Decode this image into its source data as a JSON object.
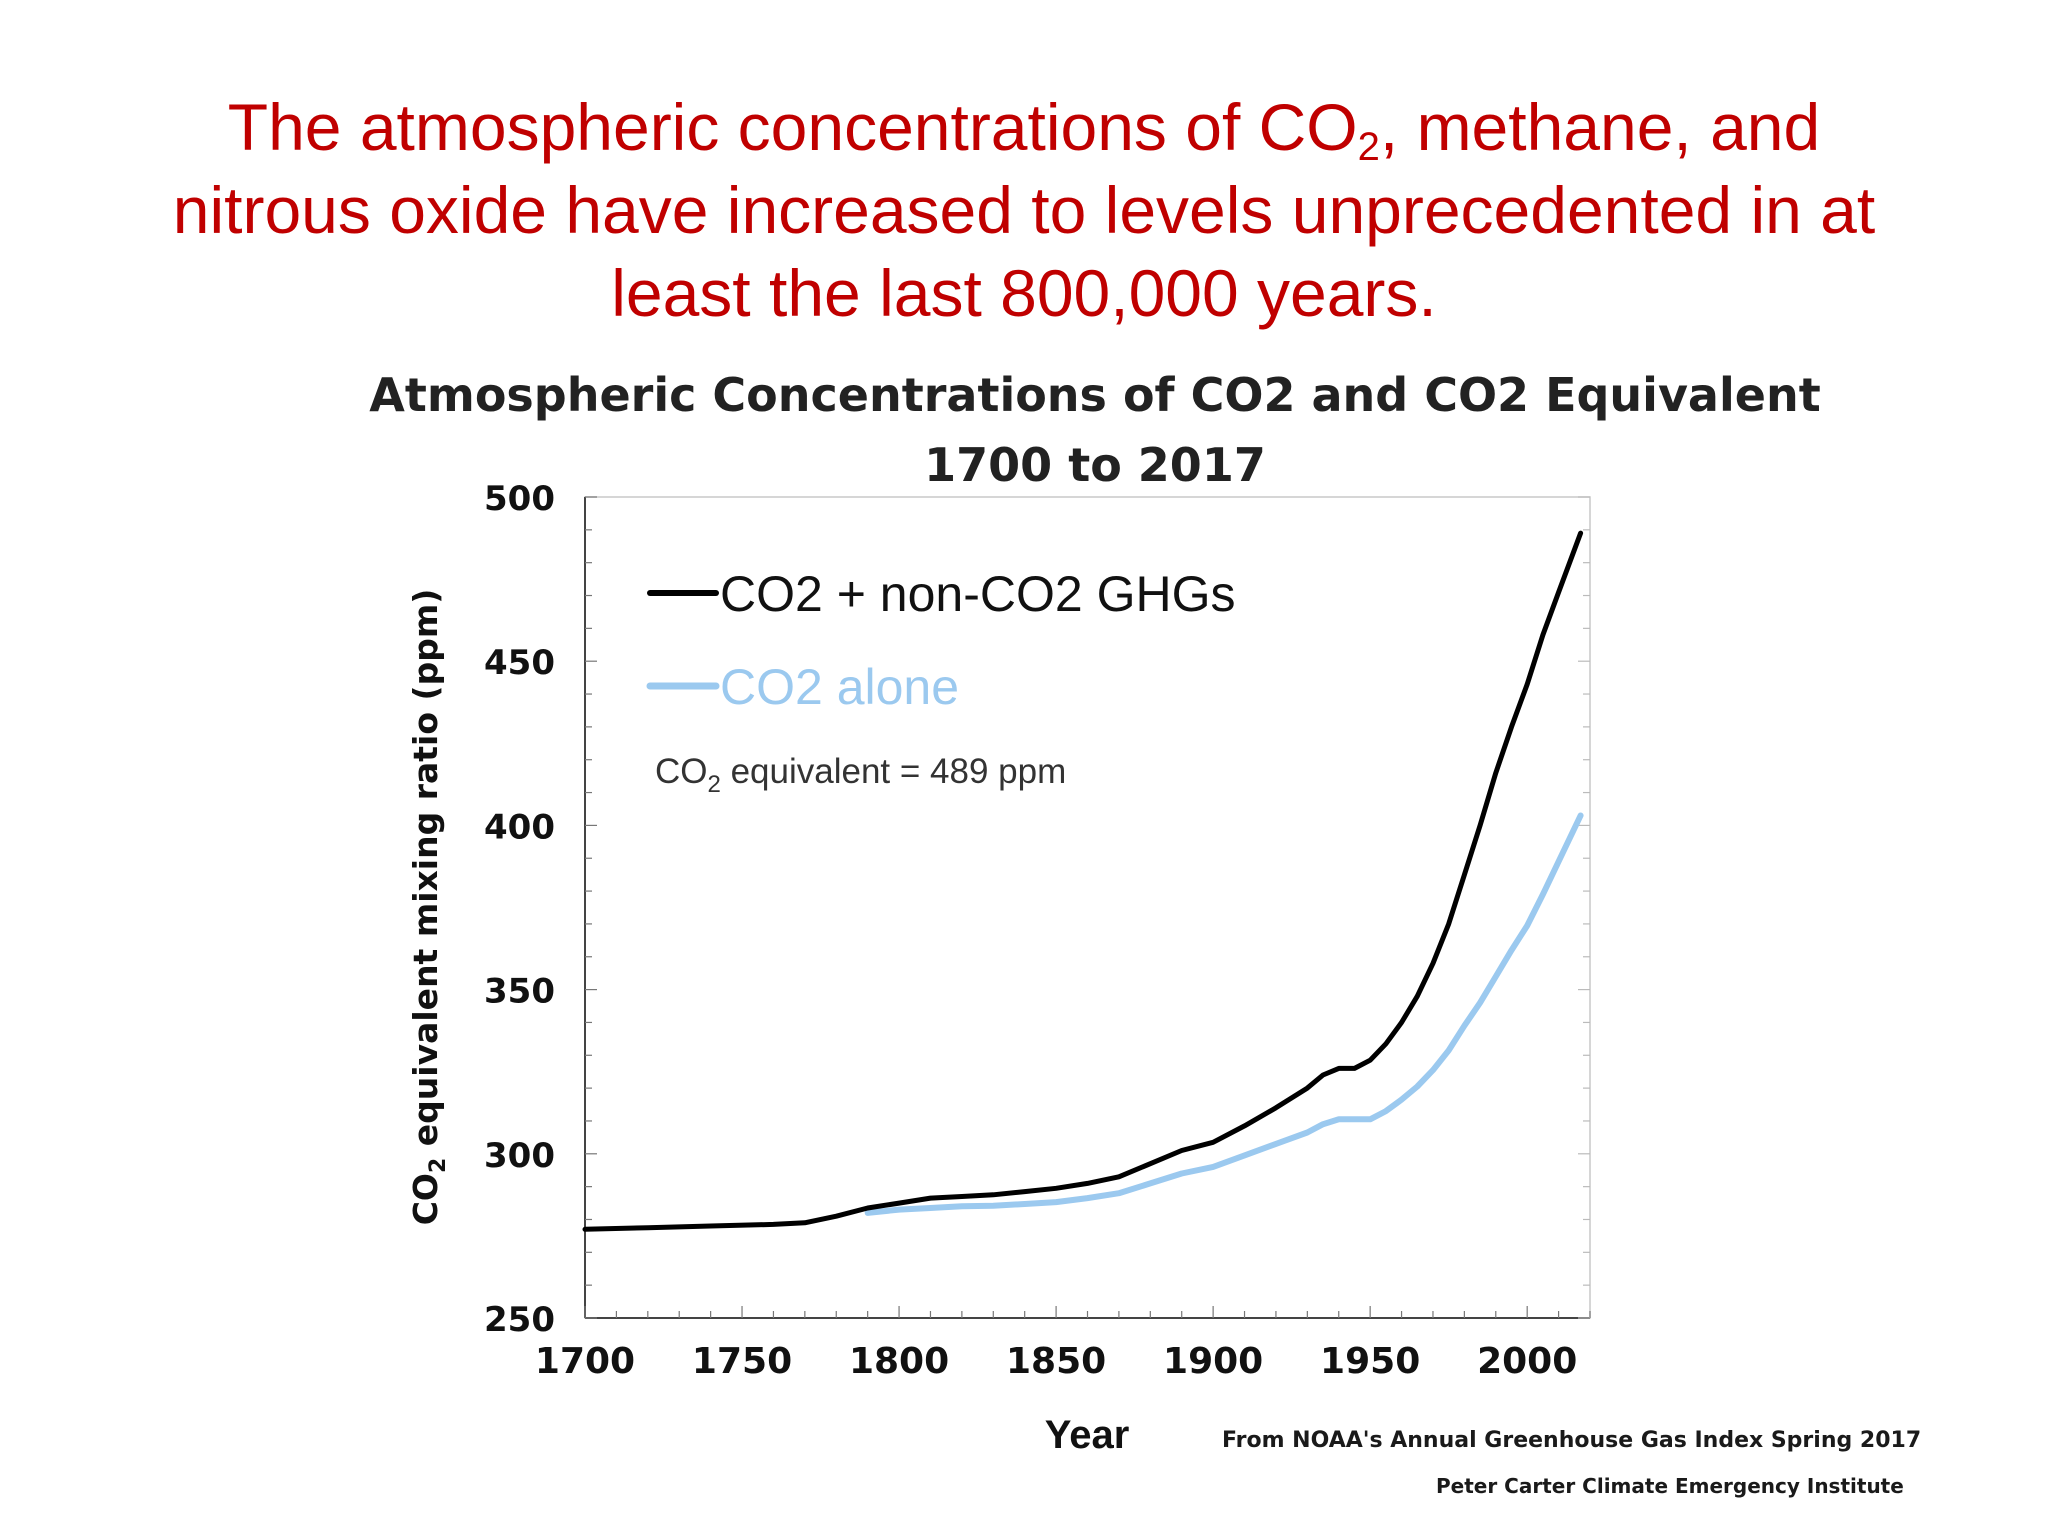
{
  "headline": {
    "line1_before": "The atmospheric concentrations of CO",
    "line1_sub": "2",
    "line1_after": ", methane, and",
    "line2": "nitrous oxide have increased to levels unprecedented in at",
    "line3": "least the last 800,000 years."
  },
  "source": {
    "line1": "From NOAA's Annual Greenhouse Gas Index Spring 2017",
    "line2": "Peter Carter  Climate Emergency Institute"
  },
  "chart_data": {
    "type": "line",
    "title": "Atmospheric Concentrations of CO2 and CO2  Equivalent",
    "subtitle": "1700 to 2017",
    "xlabel": "Year",
    "ylabel_main": "CO",
    "ylabel_sub": "2",
    "ylabel_rest": " equivalent mixing ratio (ppm)",
    "xlim": [
      1700,
      2020
    ],
    "ylim": [
      250,
      500
    ],
    "xticks": [
      1700,
      1750,
      1800,
      1850,
      1900,
      1950,
      2000
    ],
    "yticks": [
      250,
      300,
      350,
      400,
      450,
      500
    ],
    "grid": false,
    "legend_position": "top-left",
    "annotation": {
      "prefix": "CO",
      "sub": "2",
      "suffix": " equivalent = 489 ppm",
      "x": 1723,
      "y": 416
    },
    "series": [
      {
        "name": "CO2 + non-CO2 GHGs",
        "color": "#000000",
        "x": [
          1700,
          1720,
          1740,
          1760,
          1770,
          1780,
          1790,
          1800,
          1810,
          1820,
          1830,
          1840,
          1850,
          1860,
          1870,
          1880,
          1890,
          1900,
          1910,
          1920,
          1930,
          1935,
          1940,
          1945,
          1950,
          1955,
          1960,
          1965,
          1970,
          1975,
          1980,
          1985,
          1990,
          1995,
          2000,
          2005,
          2010,
          2017
        ],
        "y": [
          277,
          277.5,
          278,
          278.5,
          279,
          281,
          283.5,
          285,
          286.5,
          287,
          287.5,
          288.5,
          289.5,
          291,
          293,
          297,
          301,
          303.5,
          308.5,
          314,
          320,
          324,
          326,
          326,
          328.5,
          333.5,
          340,
          348,
          358,
          370,
          385,
          400,
          416,
          430,
          443,
          458,
          471,
          489
        ]
      },
      {
        "name": "CO2 alone",
        "color": "#9bc9ef",
        "x": [
          1790,
          1800,
          1810,
          1820,
          1830,
          1840,
          1850,
          1860,
          1870,
          1880,
          1890,
          1900,
          1910,
          1920,
          1930,
          1935,
          1940,
          1945,
          1950,
          1955,
          1960,
          1965,
          1970,
          1975,
          1980,
          1985,
          1990,
          1995,
          2000,
          2005,
          2010,
          2017
        ],
        "y": [
          282,
          283,
          283.5,
          284,
          284.2,
          284.7,
          285.3,
          286.5,
          288,
          291,
          294,
          296,
          299.5,
          303,
          306.5,
          309,
          310.5,
          310.5,
          310.5,
          313,
          316.5,
          320.5,
          325.5,
          331.5,
          339,
          346,
          354,
          362,
          369.5,
          379,
          389,
          403
        ]
      }
    ]
  }
}
